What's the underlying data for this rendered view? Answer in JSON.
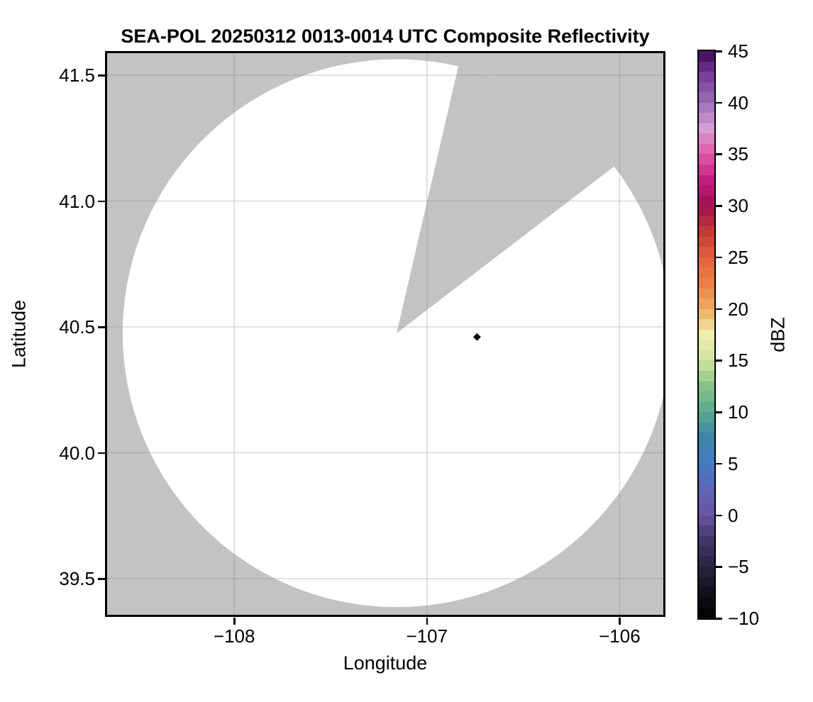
{
  "figure": {
    "title": "SEA-POL 20250312 0013-0014 UTC Composite Reflectivity",
    "background_color": "#ffffff"
  },
  "axes": {
    "xlabel": "Longitude",
    "ylabel": "Latitude",
    "x_tick_labels": [
      "−108",
      "−107",
      "−106"
    ],
    "y_tick_labels": [
      "41.5",
      "41.0",
      "40.5",
      "40.0",
      "39.5"
    ],
    "nodata_bg_color": "#c3c3c3",
    "scan_area_color": "#ffffff",
    "gridline_color": "rgba(128,128,128,0.30)",
    "spine_color": "#000000"
  },
  "colorbar": {
    "label": "dBZ",
    "tick_labels": [
      "45",
      "40",
      "35",
      "30",
      "25",
      "20",
      "15",
      "10",
      "5",
      "0",
      "−5",
      "−10"
    ]
  },
  "chart_data": {
    "type": "heatmap",
    "subtype": "radar-ppi-composite-reflectivity",
    "title": "SEA-POL 20250312 0013-0014 UTC Composite Reflectivity",
    "xlabel": "Longitude",
    "ylabel": "Latitude",
    "colorbar_label": "dBZ",
    "xlim": [
      -108.67,
      -105.76
    ],
    "ylim": [
      39.35,
      41.6
    ],
    "xticks": [
      -108,
      -107,
      -106
    ],
    "yticks": [
      41.5,
      41.0,
      40.5,
      40.0,
      39.5
    ],
    "grid": true,
    "colorbar_range": [
      -10,
      45
    ],
    "colorbar_ticks": [
      45,
      40,
      35,
      30,
      25,
      20,
      15,
      10,
      5,
      0,
      -5,
      -10
    ],
    "colorbar_step_dbz": 1,
    "colormap_stops": [
      [
        45,
        "#3d0a54"
      ],
      [
        42.5,
        "#7b3f9d"
      ],
      [
        40,
        "#9a6fb8"
      ],
      [
        37.5,
        "#d49fd3"
      ],
      [
        35,
        "#de5ba6"
      ],
      [
        32.5,
        "#c31d82"
      ],
      [
        30,
        "#a01150"
      ],
      [
        27.5,
        "#c23a38"
      ],
      [
        25,
        "#e2603a"
      ],
      [
        22.5,
        "#ea8048"
      ],
      [
        20,
        "#ecac62"
      ],
      [
        17.5,
        "#f1edae"
      ],
      [
        15,
        "#cfe49f"
      ],
      [
        12.5,
        "#86c28a"
      ],
      [
        10,
        "#58a88e"
      ],
      [
        7.5,
        "#3d87a5"
      ],
      [
        5,
        "#447bc4"
      ],
      [
        2.5,
        "#5f66b5"
      ],
      [
        0,
        "#6a53a4"
      ],
      [
        -2.5,
        "#403566"
      ],
      [
        -5,
        "#2b2441"
      ],
      [
        -7.5,
        "#121019"
      ],
      [
        -10,
        "#000000"
      ]
    ],
    "radar": {
      "center_lon": -107.157,
      "center_lat": 40.475,
      "range_deg_lat": 1.088,
      "missing_sector_azimuth_deg": [
        13,
        52.5
      ],
      "scan_area_meaning": "white = scanned, no echo",
      "outside_meaning": "gray = no data"
    },
    "echoes": [
      {
        "lon": -106.74,
        "lat": 40.46,
        "approx_dbz": -9,
        "color": "#0b0b12",
        "marker": "diamond"
      }
    ]
  }
}
